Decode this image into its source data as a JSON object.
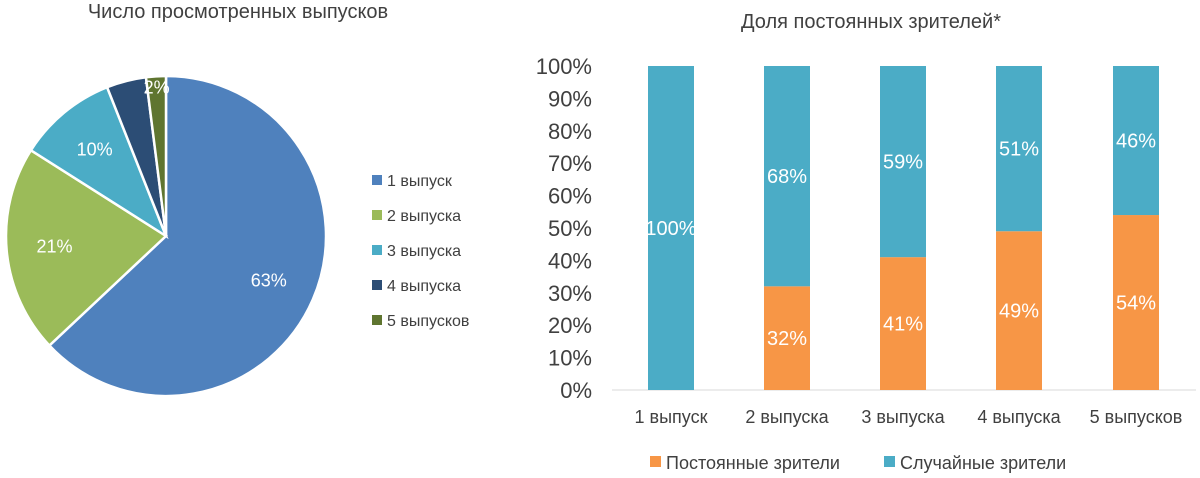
{
  "chart_data": [
    {
      "type": "pie",
      "title": "Число просмотренных выпусков",
      "categories": [
        "1 выпуск",
        "2 выпуска",
        "3 выпуска",
        "4 выпуска",
        "5 выпусков"
      ],
      "values": [
        63,
        21,
        10,
        4,
        2
      ],
      "data_labels": [
        "63%",
        "21%",
        "10%",
        "",
        "2%"
      ],
      "colors": [
        "#4f81bd",
        "#9bbb59",
        "#4bacc6",
        "#2c4d75",
        "#5f7530"
      ],
      "legend_position": "right"
    },
    {
      "type": "bar",
      "stacked": true,
      "title": "Доля постоянных зрителей*",
      "categories": [
        "1 выпуск",
        "2 выпуска",
        "3 выпуска",
        "4 выпуска",
        "5 выпусков"
      ],
      "series": [
        {
          "name": "Постоянные зрители",
          "values": [
            0,
            32,
            41,
            49,
            54
          ],
          "labels": [
            "",
            "32%",
            "41%",
            "49%",
            "54%"
          ],
          "color": "#f79646"
        },
        {
          "name": "Случайные зрители",
          "values": [
            100,
            68,
            59,
            51,
            46
          ],
          "labels": [
            "100%",
            "68%",
            "59%",
            "51%",
            "46%"
          ],
          "color": "#4bacc6"
        }
      ],
      "ylim": [
        0,
        100
      ],
      "yticks": [
        "0%",
        "10%",
        "20%",
        "30%",
        "40%",
        "50%",
        "60%",
        "70%",
        "80%",
        "90%",
        "100%"
      ],
      "grid": false,
      "legend_position": "bottom"
    }
  ]
}
